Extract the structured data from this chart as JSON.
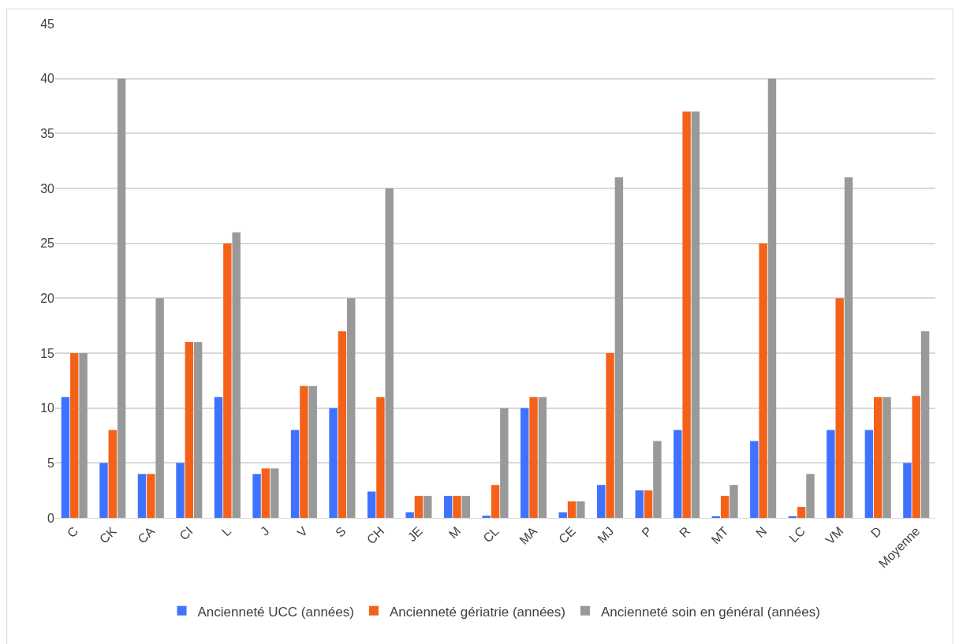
{
  "chart_data": {
    "type": "bar",
    "categories": [
      "C",
      "CK",
      "CA",
      "CI",
      "L",
      "J",
      "V",
      "S",
      "CH",
      "JE",
      "M",
      "CL",
      "MA",
      "CE",
      "MJ",
      "P",
      "R",
      "MT",
      "N",
      "LC",
      "VM",
      "D",
      "Moyenne"
    ],
    "series": [
      {
        "name": "Ancienneté UCC (années)",
        "color": "#3f72ff",
        "values": [
          11,
          5,
          4,
          5,
          11,
          4,
          8,
          10,
          2.4,
          0.5,
          2,
          0.2,
          10,
          0.5,
          3,
          2.5,
          8,
          0.1,
          7,
          0.1,
          8,
          8,
          5
        ]
      },
      {
        "name": "Ancienneté gériatrie (années)",
        "color": "#f4621a",
        "values": [
          15,
          8,
          4,
          16,
          25,
          4.5,
          12,
          17,
          11,
          2,
          2,
          3,
          11,
          1.5,
          15,
          2.5,
          37,
          2,
          25,
          1,
          20,
          11,
          11.1
        ]
      },
      {
        "name": "Ancienneté soin en général (années)",
        "color": "#999999",
        "values": [
          15,
          40,
          20,
          16,
          26,
          4.5,
          12,
          20,
          30,
          2,
          2,
          10,
          11,
          1.5,
          31,
          7,
          37,
          3,
          40,
          4,
          31,
          11,
          17
        ]
      }
    ],
    "ylim": [
      0,
      45
    ],
    "yticks": [
      0,
      5,
      10,
      15,
      20,
      25,
      30,
      35,
      40,
      45
    ],
    "grid": "y",
    "legend": "bottom"
  }
}
